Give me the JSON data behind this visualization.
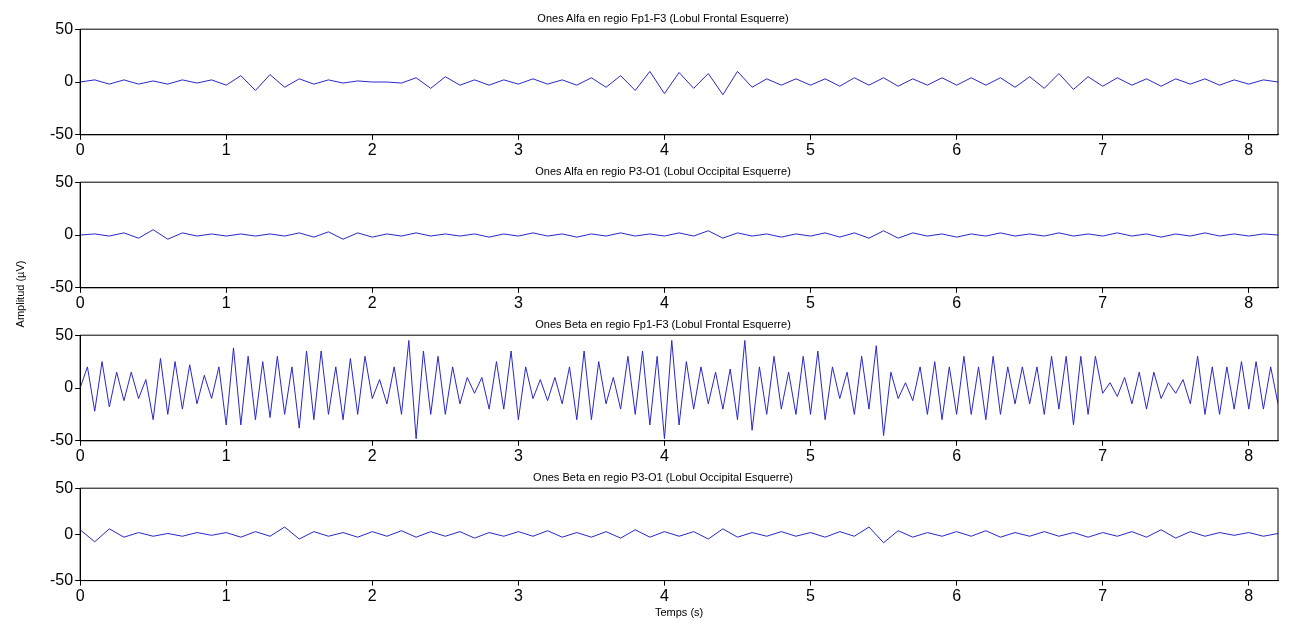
{
  "chart_data": [
    {
      "type": "line",
      "title": "Ones Alfa en regio Fp1-F3 (Lobul Frontal Esquerre)",
      "color": "#2828c8",
      "xlim": [
        0,
        8.2
      ],
      "ylim": [
        -50,
        50
      ],
      "xticks": [
        0,
        1,
        2,
        3,
        4,
        5,
        6,
        7,
        8
      ],
      "yticks": [
        -50,
        0,
        50
      ],
      "x": [
        0,
        0.1,
        0.2,
        0.3,
        0.4,
        0.5,
        0.6,
        0.7,
        0.8,
        0.9,
        1,
        1.1,
        1.2,
        1.3,
        1.4,
        1.5,
        1.6,
        1.7,
        1.8,
        1.9,
        2,
        2.1,
        2.2,
        2.3,
        2.4,
        2.5,
        2.6,
        2.7,
        2.8,
        2.9,
        3,
        3.1,
        3.2,
        3.3,
        3.4,
        3.5,
        3.6,
        3.7,
        3.8,
        3.9,
        4,
        4.1,
        4.2,
        4.3,
        4.4,
        4.5,
        4.6,
        4.7,
        4.8,
        4.9,
        5,
        5.1,
        5.2,
        5.3,
        5.4,
        5.5,
        5.6,
        5.7,
        5.8,
        5.9,
        6,
        6.1,
        6.2,
        6.3,
        6.4,
        6.5,
        6.6,
        6.7,
        6.8,
        6.9,
        7,
        7.1,
        7.2,
        7.3,
        7.4,
        7.5,
        7.6,
        7.7,
        7.8,
        7.9,
        8,
        8.1,
        8.2
      ],
      "values": [
        0,
        2,
        -2,
        2,
        -2,
        1,
        -2,
        2,
        -1,
        2,
        -3,
        6,
        -8,
        7,
        -5,
        3,
        -2,
        2,
        -1,
        1,
        0,
        0,
        -1,
        4,
        -6,
        5,
        -3,
        2,
        -3,
        2,
        -2,
        3,
        -2,
        2,
        -3,
        4,
        -5,
        6,
        -8,
        10,
        -11,
        9,
        -6,
        8,
        -12,
        10,
        -5,
        3,
        -3,
        3,
        -3,
        3,
        -4,
        4,
        -3,
        4,
        -4,
        3,
        -3,
        4,
        -3,
        4,
        -3,
        4,
        -5,
        5,
        -6,
        8,
        -7,
        5,
        -4,
        4,
        -3,
        3,
        -4,
        3,
        -2,
        3,
        -3,
        2,
        -2,
        2,
        0
      ]
    },
    {
      "type": "line",
      "title": "Ones Alfa en regio P3-O1 (Lobul Occipital Esquerre)",
      "color": "#2828c8",
      "xlim": [
        0,
        8.2
      ],
      "ylim": [
        -50,
        50
      ],
      "xticks": [
        0,
        1,
        2,
        3,
        4,
        5,
        6,
        7,
        8
      ],
      "yticks": [
        -50,
        0,
        50
      ],
      "x": [
        0,
        0.1,
        0.2,
        0.3,
        0.4,
        0.5,
        0.6,
        0.7,
        0.8,
        0.9,
        1,
        1.1,
        1.2,
        1.3,
        1.4,
        1.5,
        1.6,
        1.7,
        1.8,
        1.9,
        2,
        2.1,
        2.2,
        2.3,
        2.4,
        2.5,
        2.6,
        2.7,
        2.8,
        2.9,
        3,
        3.1,
        3.2,
        3.3,
        3.4,
        3.5,
        3.6,
        3.7,
        3.8,
        3.9,
        4,
        4.1,
        4.2,
        4.3,
        4.4,
        4.5,
        4.6,
        4.7,
        4.8,
        4.9,
        5,
        5.1,
        5.2,
        5.3,
        5.4,
        5.5,
        5.6,
        5.7,
        5.8,
        5.9,
        6,
        6.1,
        6.2,
        6.3,
        6.4,
        6.5,
        6.6,
        6.7,
        6.8,
        6.9,
        7,
        7.1,
        7.2,
        7.3,
        7.4,
        7.5,
        7.6,
        7.7,
        7.8,
        7.9,
        8,
        8.1,
        8.2
      ],
      "values": [
        0,
        1,
        -1,
        2,
        -3,
        5,
        -4,
        2,
        -1,
        1,
        -1,
        1,
        -1,
        1,
        -1,
        2,
        -2,
        3,
        -4,
        2,
        -2,
        1,
        -1,
        2,
        -1,
        1,
        -1,
        1,
        -2,
        1,
        -1,
        2,
        -1,
        1,
        -2,
        1,
        -1,
        2,
        -1,
        1,
        -1,
        2,
        -1,
        4,
        -3,
        2,
        -1,
        1,
        -2,
        1,
        -1,
        2,
        -2,
        2,
        -3,
        4,
        -3,
        2,
        -1,
        1,
        -2,
        1,
        -1,
        2,
        -1,
        1,
        -1,
        2,
        -1,
        1,
        -1,
        2,
        -1,
        1,
        -2,
        1,
        -1,
        2,
        -1,
        1,
        -1,
        1,
        0
      ]
    },
    {
      "type": "line",
      "title": "Ones Beta en regio Fp1-F3 (Lobul Frontal Esquerre)",
      "ylabel": "Amplitud (µV)",
      "color": "#2828c8",
      "xlim": [
        0,
        8.2
      ],
      "ylim": [
        -50,
        50
      ],
      "xticks": [
        0,
        1,
        2,
        3,
        4,
        5,
        6,
        7,
        8
      ],
      "yticks": [
        -50,
        0,
        50
      ],
      "x": [
        0,
        0.05,
        0.1,
        0.15,
        0.2,
        0.25,
        0.3,
        0.35,
        0.4,
        0.45,
        0.5,
        0.55,
        0.6,
        0.65,
        0.7,
        0.75,
        0.8,
        0.85,
        0.9,
        0.95,
        1,
        1.05,
        1.1,
        1.15,
        1.2,
        1.25,
        1.3,
        1.35,
        1.4,
        1.45,
        1.5,
        1.55,
        1.6,
        1.65,
        1.7,
        1.75,
        1.8,
        1.85,
        1.9,
        1.95,
        2,
        2.05,
        2.1,
        2.15,
        2.2,
        2.25,
        2.3,
        2.35,
        2.4,
        2.45,
        2.5,
        2.55,
        2.6,
        2.65,
        2.7,
        2.75,
        2.8,
        2.85,
        2.9,
        2.95,
        3,
        3.05,
        3.1,
        3.15,
        3.2,
        3.25,
        3.3,
        3.35,
        3.4,
        3.45,
        3.5,
        3.55,
        3.6,
        3.65,
        3.7,
        3.75,
        3.8,
        3.85,
        3.9,
        3.95,
        4,
        4.05,
        4.1,
        4.15,
        4.2,
        4.25,
        4.3,
        4.35,
        4.4,
        4.45,
        4.5,
        4.55,
        4.6,
        4.65,
        4.7,
        4.75,
        4.8,
        4.85,
        4.9,
        4.95,
        5,
        5.05,
        5.1,
        5.15,
        5.2,
        5.25,
        5.3,
        5.35,
        5.4,
        5.45,
        5.5,
        5.55,
        5.6,
        5.65,
        5.7,
        5.75,
        5.8,
        5.85,
        5.9,
        5.95,
        6,
        6.05,
        6.1,
        6.15,
        6.2,
        6.25,
        6.3,
        6.35,
        6.4,
        6.45,
        6.5,
        6.55,
        6.6,
        6.65,
        6.7,
        6.75,
        6.8,
        6.85,
        6.9,
        6.95,
        7,
        7.05,
        7.1,
        7.15,
        7.2,
        7.25,
        7.3,
        7.35,
        7.4,
        7.45,
        7.5,
        7.55,
        7.6,
        7.65,
        7.7,
        7.75,
        7.8,
        7.85,
        7.9,
        7.95,
        8,
        8.05,
        8.1,
        8.15,
        8.2
      ],
      "values": [
        0,
        20,
        -22,
        25,
        -18,
        15,
        -12,
        15,
        -10,
        8,
        -30,
        28,
        -25,
        25,
        -20,
        22,
        -15,
        12,
        -10,
        20,
        -35,
        38,
        -35,
        30,
        -30,
        25,
        -28,
        30,
        -25,
        20,
        -38,
        35,
        -30,
        35,
        -25,
        20,
        -30,
        28,
        -25,
        30,
        -10,
        8,
        -15,
        20,
        -25,
        45,
        -48,
        35,
        -25,
        30,
        -25,
        20,
        -15,
        10,
        -5,
        10,
        -20,
        25,
        -20,
        35,
        -30,
        20,
        -10,
        8,
        -12,
        10,
        -15,
        20,
        -30,
        35,
        -30,
        25,
        -15,
        10,
        -20,
        30,
        -25,
        35,
        -35,
        30,
        -48,
        45,
        -35,
        25,
        -20,
        20,
        -15,
        15,
        -20,
        18,
        -30,
        45,
        -40,
        20,
        -25,
        30,
        -20,
        15,
        -25,
        30,
        -25,
        35,
        -30,
        20,
        -10,
        15,
        -25,
        30,
        -20,
        40,
        -45,
        15,
        -10,
        5,
        -12,
        20,
        -25,
        25,
        -30,
        20,
        -25,
        30,
        -25,
        20,
        -30,
        30,
        -25,
        20,
        -15,
        20,
        -15,
        20,
        -25,
        30,
        -20,
        30,
        -35,
        30,
        -25,
        30,
        -5,
        5,
        -8,
        10,
        -15,
        15,
        -20,
        15,
        -10,
        5,
        -5,
        8,
        -15,
        30,
        -25,
        20,
        -25,
        20,
        -20,
        25,
        -20,
        25,
        -20,
        20,
        -15
      ]
    },
    {
      "type": "line",
      "title": "Ones Beta en regio P3-O1 (Lobul Occipital Esquerre)",
      "xlabel": "Temps (s)",
      "color": "#2828c8",
      "xlim": [
        0,
        8.2
      ],
      "ylim": [
        -50,
        50
      ],
      "xticks": [
        0,
        1,
        2,
        3,
        4,
        5,
        6,
        7,
        8
      ],
      "yticks": [
        -50,
        0,
        50
      ],
      "x": [
        0,
        0.1,
        0.2,
        0.3,
        0.4,
        0.5,
        0.6,
        0.7,
        0.8,
        0.9,
        1,
        1.1,
        1.2,
        1.3,
        1.4,
        1.5,
        1.6,
        1.7,
        1.8,
        1.9,
        2,
        2.1,
        2.2,
        2.3,
        2.4,
        2.5,
        2.6,
        2.7,
        2.8,
        2.9,
        3,
        3.1,
        3.2,
        3.3,
        3.4,
        3.5,
        3.6,
        3.7,
        3.8,
        3.9,
        4,
        4.1,
        4.2,
        4.3,
        4.4,
        4.5,
        4.6,
        4.7,
        4.8,
        4.9,
        5,
        5.1,
        5.2,
        5.3,
        5.4,
        5.5,
        5.6,
        5.7,
        5.8,
        5.9,
        6,
        6.1,
        6.2,
        6.3,
        6.4,
        6.5,
        6.6,
        6.7,
        6.8,
        6.9,
        7,
        7.1,
        7.2,
        7.3,
        7.4,
        7.5,
        7.6,
        7.7,
        7.8,
        7.9,
        8,
        8.1,
        8.2
      ],
      "values": [
        5,
        -8,
        6,
        -3,
        2,
        -2,
        1,
        -2,
        2,
        -1,
        2,
        -3,
        3,
        -2,
        8,
        -5,
        3,
        -2,
        2,
        -3,
        3,
        -2,
        4,
        -3,
        3,
        -2,
        3,
        -4,
        2,
        -2,
        3,
        -2,
        4,
        -3,
        2,
        -3,
        3,
        -4,
        5,
        -3,
        3,
        -2,
        3,
        -5,
        6,
        -3,
        2,
        -2,
        3,
        -2,
        2,
        -3,
        3,
        -2,
        8,
        -9,
        4,
        -3,
        2,
        -2,
        3,
        -2,
        4,
        -3,
        2,
        -2,
        3,
        -2,
        2,
        -3,
        2,
        -2,
        3,
        -3,
        5,
        -4,
        3,
        -2,
        2,
        -1,
        2,
        -2,
        1
      ]
    }
  ]
}
